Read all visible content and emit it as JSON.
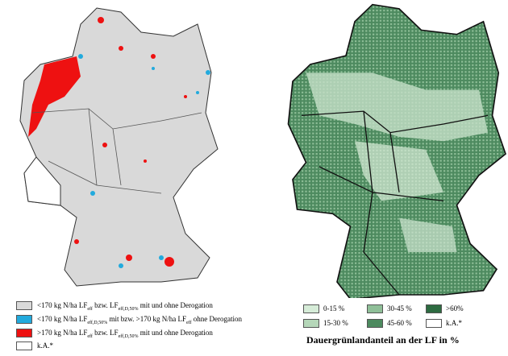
{
  "legend_left": {
    "items": [
      {
        "parts": [
          "<170 kg N/ha LF",
          "eff",
          " bzw. LF",
          "eff,D,50%",
          " mit und ohne Derogation"
        ]
      },
      {
        "parts": [
          "<170 kg N/ha LF",
          "eff,D,50%",
          " mit bzw. >170 kg N/ha LF",
          "eff",
          " ohne Derogation"
        ]
      },
      {
        "parts": [
          ">170 kg N/ha LF",
          "eff",
          " bzw. LF",
          "eff,D,50%",
          " mit und ohne Derogation"
        ]
      },
      {
        "parts": [
          "k.A.*"
        ]
      }
    ]
  },
  "legend_right": {
    "items": [
      "0-15 %",
      "30-45 %",
      ">60%",
      "15-30 %",
      "45-60 %",
      "k.A.*"
    ],
    "title": "Dauergrünlandanteil an der LF in %"
  }
}
